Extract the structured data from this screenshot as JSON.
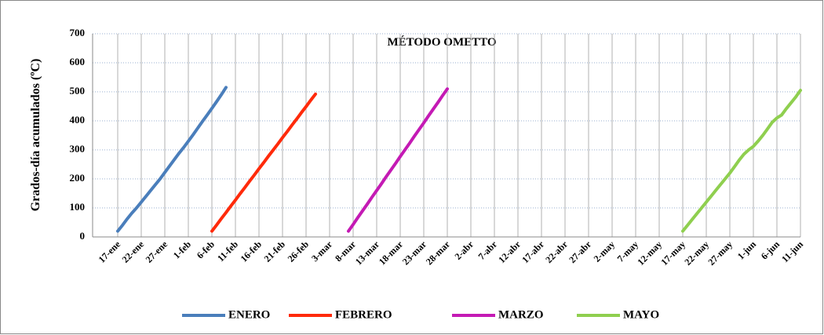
{
  "chart_data": {
    "type": "line",
    "title": "MÉTODO OMETTO",
    "y_label": "Grados-día acumulados (ºC)",
    "categories": [
      "17-ene",
      null,
      null,
      null,
      null,
      "22-ene",
      null,
      null,
      null,
      null,
      "27-ene",
      null,
      null,
      null,
      null,
      "1-feb",
      null,
      null,
      null,
      null,
      "6-feb",
      null,
      null,
      null,
      null,
      "11-feb",
      null,
      null,
      null,
      null,
      "16-feb",
      null,
      null,
      null,
      null,
      "21-feb",
      null,
      null,
      null,
      null,
      "26-feb",
      null,
      null,
      null,
      null,
      "3-mar",
      null,
      null,
      null,
      null,
      "8-mar",
      null,
      null,
      null,
      null,
      "13-mar",
      null,
      null,
      null,
      null,
      "18-mar",
      null,
      null,
      null,
      null,
      "23-mar",
      null,
      null,
      null,
      null,
      "28-mar",
      null,
      null,
      null,
      null,
      "2-abr",
      null,
      null,
      null,
      null,
      "7-abr",
      null,
      null,
      null,
      null,
      "12-abr",
      null,
      null,
      null,
      null,
      "17-abr",
      null,
      null,
      null,
      null,
      "22-abr",
      null,
      null,
      null,
      null,
      "27-abr",
      null,
      null,
      null,
      null,
      "2-may",
      null,
      null,
      null,
      null,
      "7-may",
      null,
      null,
      null,
      null,
      "12-may",
      null,
      null,
      null,
      null,
      "17-may",
      null,
      null,
      null,
      null,
      "22-may",
      null,
      null,
      null,
      null,
      "27-may",
      null,
      null,
      null,
      null,
      "1-jun",
      null,
      null,
      null,
      null,
      "6-jun",
      null,
      null,
      null,
      null,
      "11-jun"
    ],
    "series": [
      {
        "name": "ENERO",
        "color": "#4a7ebb",
        "values": [
          20,
          40,
          62,
          82,
          100,
          120,
          140,
          160,
          180,
          200,
          222,
          244,
          266,
          288,
          308,
          330,
          352,
          375,
          398,
          420,
          443,
          466,
          490,
          515,
          null,
          null,
          null,
          null,
          null,
          null,
          null,
          null,
          null,
          null,
          null,
          null,
          null,
          null,
          null,
          null,
          null,
          null,
          null,
          null,
          null,
          null,
          null,
          null,
          null,
          null,
          null,
          null,
          null,
          null,
          null,
          null,
          null,
          null,
          null,
          null,
          null,
          null,
          null,
          null,
          null,
          null,
          null,
          null,
          null,
          null,
          null,
          null,
          null,
          null,
          null,
          null,
          null,
          null,
          null,
          null,
          null,
          null,
          null,
          null,
          null,
          null,
          null,
          null,
          null,
          null,
          null,
          null,
          null,
          null,
          null,
          null,
          null,
          null,
          null,
          null,
          null,
          null,
          null,
          null,
          null,
          null,
          null,
          null,
          null,
          null,
          null,
          null,
          null,
          null,
          null,
          null,
          null,
          null,
          null,
          null,
          null,
          null,
          null,
          null,
          null,
          null,
          null,
          null,
          null,
          null,
          null,
          null,
          null,
          null,
          null,
          null,
          null,
          null,
          null,
          null,
          null,
          null,
          null,
          null,
          null,
          null
        ]
      },
      {
        "name": "FEBRERO",
        "color": "#ff2a0a",
        "values": [
          null,
          null,
          null,
          null,
          null,
          null,
          null,
          null,
          null,
          null,
          null,
          null,
          null,
          null,
          null,
          null,
          null,
          null,
          null,
          null,
          20,
          41,
          63,
          84,
          106,
          127,
          149,
          170,
          192,
          213,
          235,
          256,
          278,
          299,
          320,
          342,
          363,
          385,
          406,
          428,
          449,
          471,
          492,
          null,
          null,
          null,
          null,
          null,
          null,
          null,
          null,
          null,
          null,
          null,
          null,
          null,
          null,
          null,
          null,
          null,
          null,
          null,
          null,
          null,
          null,
          null,
          null,
          null,
          null,
          null,
          null,
          null,
          null,
          null,
          null,
          null,
          null,
          null,
          null,
          null,
          null,
          null,
          null,
          null,
          null,
          null,
          null,
          null,
          null,
          null,
          null,
          null,
          null,
          null,
          null,
          null,
          null,
          null,
          null,
          null,
          null,
          null,
          null,
          null,
          null,
          null,
          null,
          null,
          null,
          null,
          null,
          null,
          null,
          null,
          null,
          null,
          null,
          null,
          null,
          null,
          null,
          null,
          null,
          null,
          null,
          null,
          null,
          null,
          null,
          null,
          null,
          null,
          null,
          null,
          null,
          null,
          null,
          null,
          null,
          null,
          null,
          null,
          null,
          null,
          null,
          null
        ]
      },
      {
        "name": "MARZO",
        "color": "#c41ab4",
        "values": [
          null,
          null,
          null,
          null,
          null,
          null,
          null,
          null,
          null,
          null,
          null,
          null,
          null,
          null,
          null,
          null,
          null,
          null,
          null,
          null,
          null,
          null,
          null,
          null,
          null,
          null,
          null,
          null,
          null,
          null,
          null,
          null,
          null,
          null,
          null,
          null,
          null,
          null,
          null,
          null,
          null,
          null,
          null,
          null,
          null,
          null,
          null,
          null,
          null,
          20,
          43,
          67,
          90,
          113,
          137,
          160,
          183,
          207,
          230,
          253,
          277,
          300,
          323,
          347,
          370,
          393,
          417,
          440,
          463,
          487,
          510,
          null,
          null,
          null,
          null,
          null,
          null,
          null,
          null,
          null,
          null,
          null,
          null,
          null,
          null,
          null,
          null,
          null,
          null,
          null,
          null,
          null,
          null,
          null,
          null,
          null,
          null,
          null,
          null,
          null,
          null,
          null,
          null,
          null,
          null,
          null,
          null,
          null,
          null,
          null,
          null,
          null,
          null,
          null,
          null,
          null,
          null,
          null,
          null,
          null,
          null,
          null,
          null,
          null,
          null,
          null,
          null,
          null,
          null,
          null,
          null,
          null,
          null,
          null,
          null,
          null,
          null,
          null,
          null,
          null,
          null,
          null,
          null,
          null,
          null,
          null
        ]
      },
      {
        "name": "MAYO",
        "color": "#8fcf4f",
        "values": [
          null,
          null,
          null,
          null,
          null,
          null,
          null,
          null,
          null,
          null,
          null,
          null,
          null,
          null,
          null,
          null,
          null,
          null,
          null,
          null,
          null,
          null,
          null,
          null,
          null,
          null,
          null,
          null,
          null,
          null,
          null,
          null,
          null,
          null,
          null,
          null,
          null,
          null,
          null,
          null,
          null,
          null,
          null,
          null,
          null,
          null,
          null,
          null,
          null,
          null,
          null,
          null,
          null,
          null,
          null,
          null,
          null,
          null,
          null,
          null,
          null,
          null,
          null,
          null,
          null,
          null,
          null,
          null,
          null,
          null,
          null,
          null,
          null,
          null,
          null,
          null,
          null,
          null,
          null,
          null,
          null,
          null,
          null,
          null,
          null,
          null,
          null,
          null,
          null,
          null,
          null,
          null,
          null,
          null,
          null,
          null,
          null,
          null,
          null,
          null,
          null,
          null,
          null,
          null,
          null,
          null,
          null,
          null,
          null,
          null,
          null,
          null,
          null,
          null,
          null,
          null,
          null,
          null,
          null,
          null,
          20,
          40,
          60,
          80,
          100,
          120,
          140,
          160,
          180,
          200,
          220,
          242,
          265,
          285,
          300,
          312,
          330,
          350,
          372,
          395,
          410,
          420,
          442,
          462,
          482,
          505
        ]
      }
    ],
    "ylim": [
      0,
      700
    ],
    "yticks": [
      0,
      100,
      200,
      300,
      400,
      500,
      600,
      700
    ],
    "grid": true,
    "legend": "bottom"
  }
}
